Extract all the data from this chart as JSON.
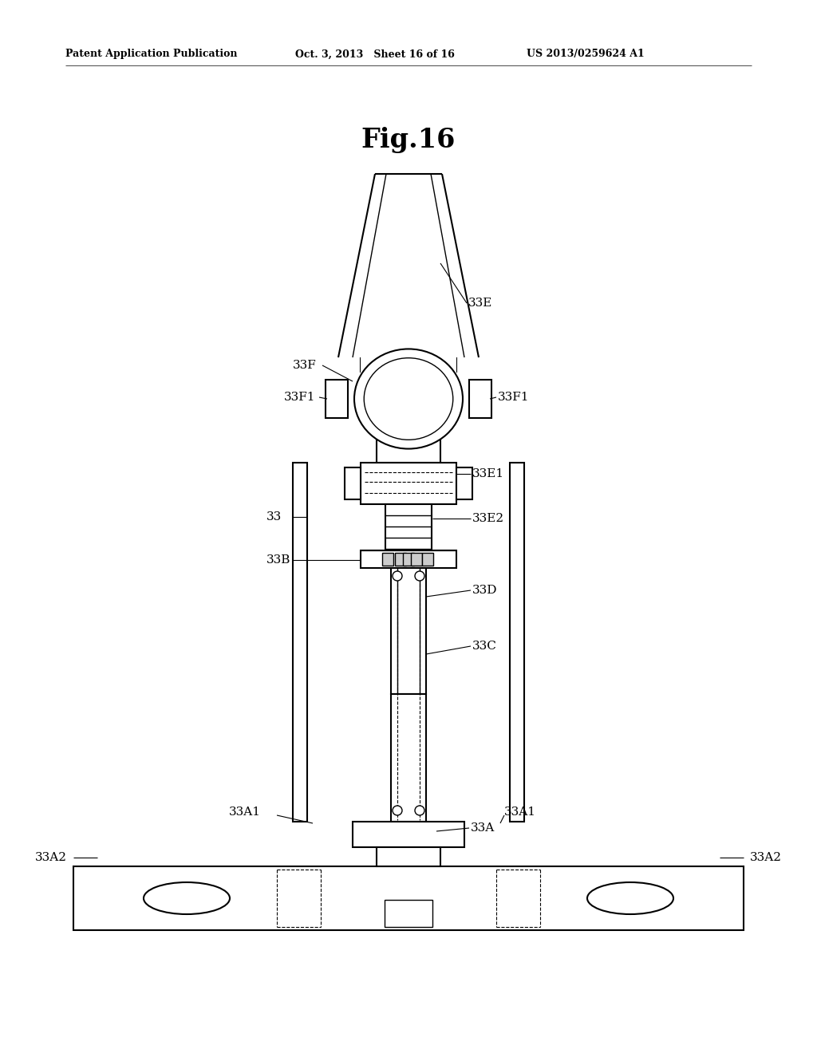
{
  "header_left": "Patent Application Publication",
  "header_mid": "Oct. 3, 2013   Sheet 16 of 16",
  "header_right": "US 2013/0259624 A1",
  "fig_title": "Fig.16",
  "bg_color": "#ffffff"
}
